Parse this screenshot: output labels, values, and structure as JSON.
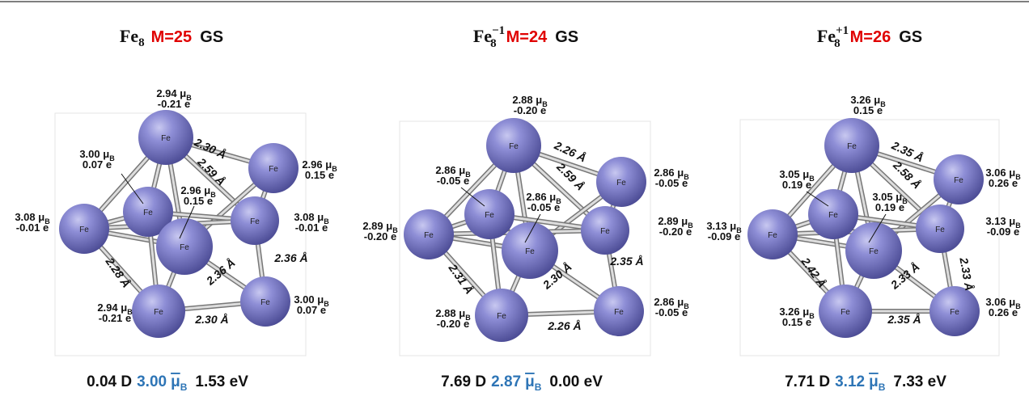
{
  "panels": [
    {
      "title": {
        "formula": "Fe",
        "subscript": "8",
        "multiplicity": "M=25",
        "state": "GS"
      },
      "atoms": [
        {
          "element": "Fe",
          "moment": "2.94 μ",
          "moment_sub": "B",
          "charge": "-0.21 e"
        },
        {
          "element": "Fe",
          "moment": "3.00 μ",
          "moment_sub": "B",
          "charge": "0.07 e"
        },
        {
          "element": "Fe",
          "moment": "2.96 μ",
          "moment_sub": "B",
          "charge": "0.15 e"
        },
        {
          "element": "Fe",
          "moment": "2.96 μ",
          "moment_sub": "B",
          "charge": "0.15 e"
        },
        {
          "element": "Fe",
          "moment": "3.08 μ",
          "moment_sub": "B",
          "charge": "-0.01 e"
        },
        {
          "element": "Fe",
          "moment": "3.08 μ",
          "moment_sub": "B",
          "charge": "-0.01 e"
        },
        {
          "element": "Fe",
          "moment": "2.94 μ",
          "moment_sub": "B",
          "charge": "-0.21 e"
        },
        {
          "element": "Fe",
          "moment": "3.00 μ",
          "moment_sub": "B",
          "charge": "0.07 e"
        }
      ],
      "bonds": [
        "2.30 Å",
        "2.59 Å",
        "2.28 Å",
        "2.36 Å",
        "2.36 Å",
        "2.30 Å"
      ],
      "footer": {
        "dipole": "0.04 D",
        "moment": "3.00",
        "moment_unit": "μ",
        "moment_sub": "B",
        "energy": "1.53 eV"
      }
    },
    {
      "title": {
        "formula": "Fe",
        "subscript": "8",
        "superscript": "−1",
        "multiplicity": "M=24",
        "state": "GS"
      },
      "atoms": [
        {
          "element": "Fe",
          "moment": "2.88 μ",
          "moment_sub": "B",
          "charge": "-0.20 e"
        },
        {
          "element": "Fe",
          "moment": "2.86 μ",
          "moment_sub": "B",
          "charge": "-0.05 e"
        },
        {
          "element": "Fe",
          "moment": "2.86 μ",
          "moment_sub": "B",
          "charge": "-0.05 e"
        },
        {
          "element": "Fe",
          "moment": "2.86 μ",
          "moment_sub": "B",
          "charge": "-0.05 e"
        },
        {
          "element": "Fe",
          "moment": "2.89 μ",
          "moment_sub": "B",
          "charge": "-0.20 e"
        },
        {
          "element": "Fe",
          "moment": "2.89 μ",
          "moment_sub": "B",
          "charge": "-0.20 e"
        },
        {
          "element": "Fe",
          "moment": "2.88 μ",
          "moment_sub": "B",
          "charge": "-0.20 e"
        },
        {
          "element": "Fe",
          "moment": "2.86 μ",
          "moment_sub": "B",
          "charge": "-0.05 e"
        }
      ],
      "bonds": [
        "2.26 Å",
        "2.59 Å",
        "2.31 Å",
        "2.30 Å",
        "2.35 Å",
        "2.26 Å"
      ],
      "footer": {
        "dipole": "7.69 D",
        "moment": "2.87",
        "moment_unit": "μ",
        "moment_sub": "B",
        "energy": "0.00 eV"
      }
    },
    {
      "title": {
        "formula": "Fe",
        "subscript": "8",
        "superscript": "+1",
        "multiplicity": "M=26",
        "state": "GS"
      },
      "atoms": [
        {
          "element": "Fe",
          "moment": "3.26 μ",
          "moment_sub": "B",
          "charge": "0.15 e"
        },
        {
          "element": "Fe",
          "moment": "3.06 μ",
          "moment_sub": "B",
          "charge": "0.26 e"
        },
        {
          "element": "Fe",
          "moment": "3.05 μ",
          "moment_sub": "B",
          "charge": "0.19 e"
        },
        {
          "element": "Fe",
          "moment": "3.05 μ",
          "moment_sub": "B",
          "charge": "0.19 e"
        },
        {
          "element": "Fe",
          "moment": "3.13 μ",
          "moment_sub": "B",
          "charge": "-0.09 e"
        },
        {
          "element": "Fe",
          "moment": "3.13 μ",
          "moment_sub": "B",
          "charge": "-0.09 e"
        },
        {
          "element": "Fe",
          "moment": "3.26 μ",
          "moment_sub": "B",
          "charge": "0.15 e"
        },
        {
          "element": "Fe",
          "moment": "3.06 μ",
          "moment_sub": "B",
          "charge": "0.26 e"
        }
      ],
      "bonds": [
        "2.35 Å",
        "2.58 Å",
        "2.42 Å",
        "2.33 Å",
        "2.33 Å",
        "2.35 Å"
      ],
      "footer": {
        "dipole": "7.71 D",
        "moment": "3.12",
        "moment_unit": "μ",
        "moment_sub": "B",
        "energy": "7.33 eV"
      }
    }
  ]
}
